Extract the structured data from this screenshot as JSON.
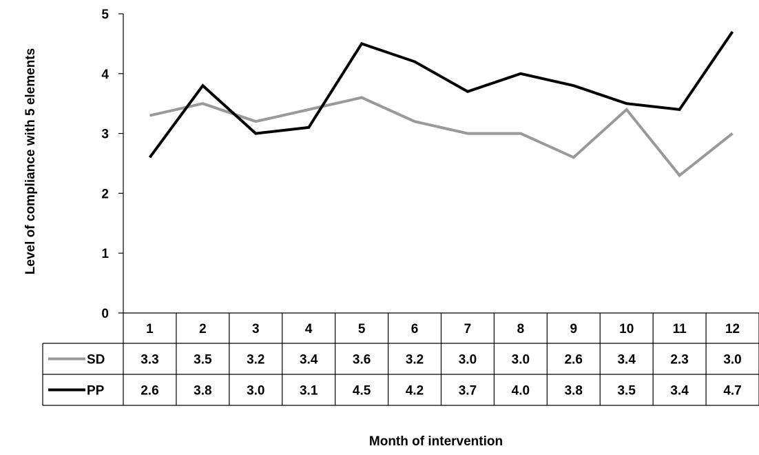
{
  "chart_data": {
    "type": "line",
    "title": "",
    "xlabel": "Month of intervention",
    "ylabel": "Level of compliance with 5 elements",
    "ylim": [
      0,
      5
    ],
    "yticks": [
      "0",
      "1",
      "2",
      "3",
      "4",
      "5"
    ],
    "categories": [
      "1",
      "2",
      "3",
      "4",
      "5",
      "6",
      "7",
      "8",
      "9",
      "10",
      "11",
      "12"
    ],
    "grid": false,
    "legend": "data-table",
    "series": [
      {
        "name": "SD",
        "color": "#999999",
        "values": [
          3.3,
          3.5,
          3.2,
          3.4,
          3.6,
          3.2,
          3.0,
          3.0,
          2.6,
          3.4,
          2.3,
          3.0
        ],
        "labels": [
          "3.3",
          "3.5",
          "3.2",
          "3.4",
          "3.6",
          "3.2",
          "3.0",
          "3.0",
          "2.6",
          "3.4",
          "2.3",
          "3.0"
        ]
      },
      {
        "name": "PP",
        "color": "#000000",
        "values": [
          2.6,
          3.8,
          3.0,
          3.1,
          4.5,
          4.2,
          3.7,
          4.0,
          3.8,
          3.5,
          3.4,
          4.7
        ],
        "labels": [
          "2.6",
          "3.8",
          "3.0",
          "3.1",
          "4.5",
          "4.2",
          "3.7",
          "4.0",
          "3.8",
          "3.5",
          "3.4",
          "4.7"
        ]
      }
    ]
  }
}
